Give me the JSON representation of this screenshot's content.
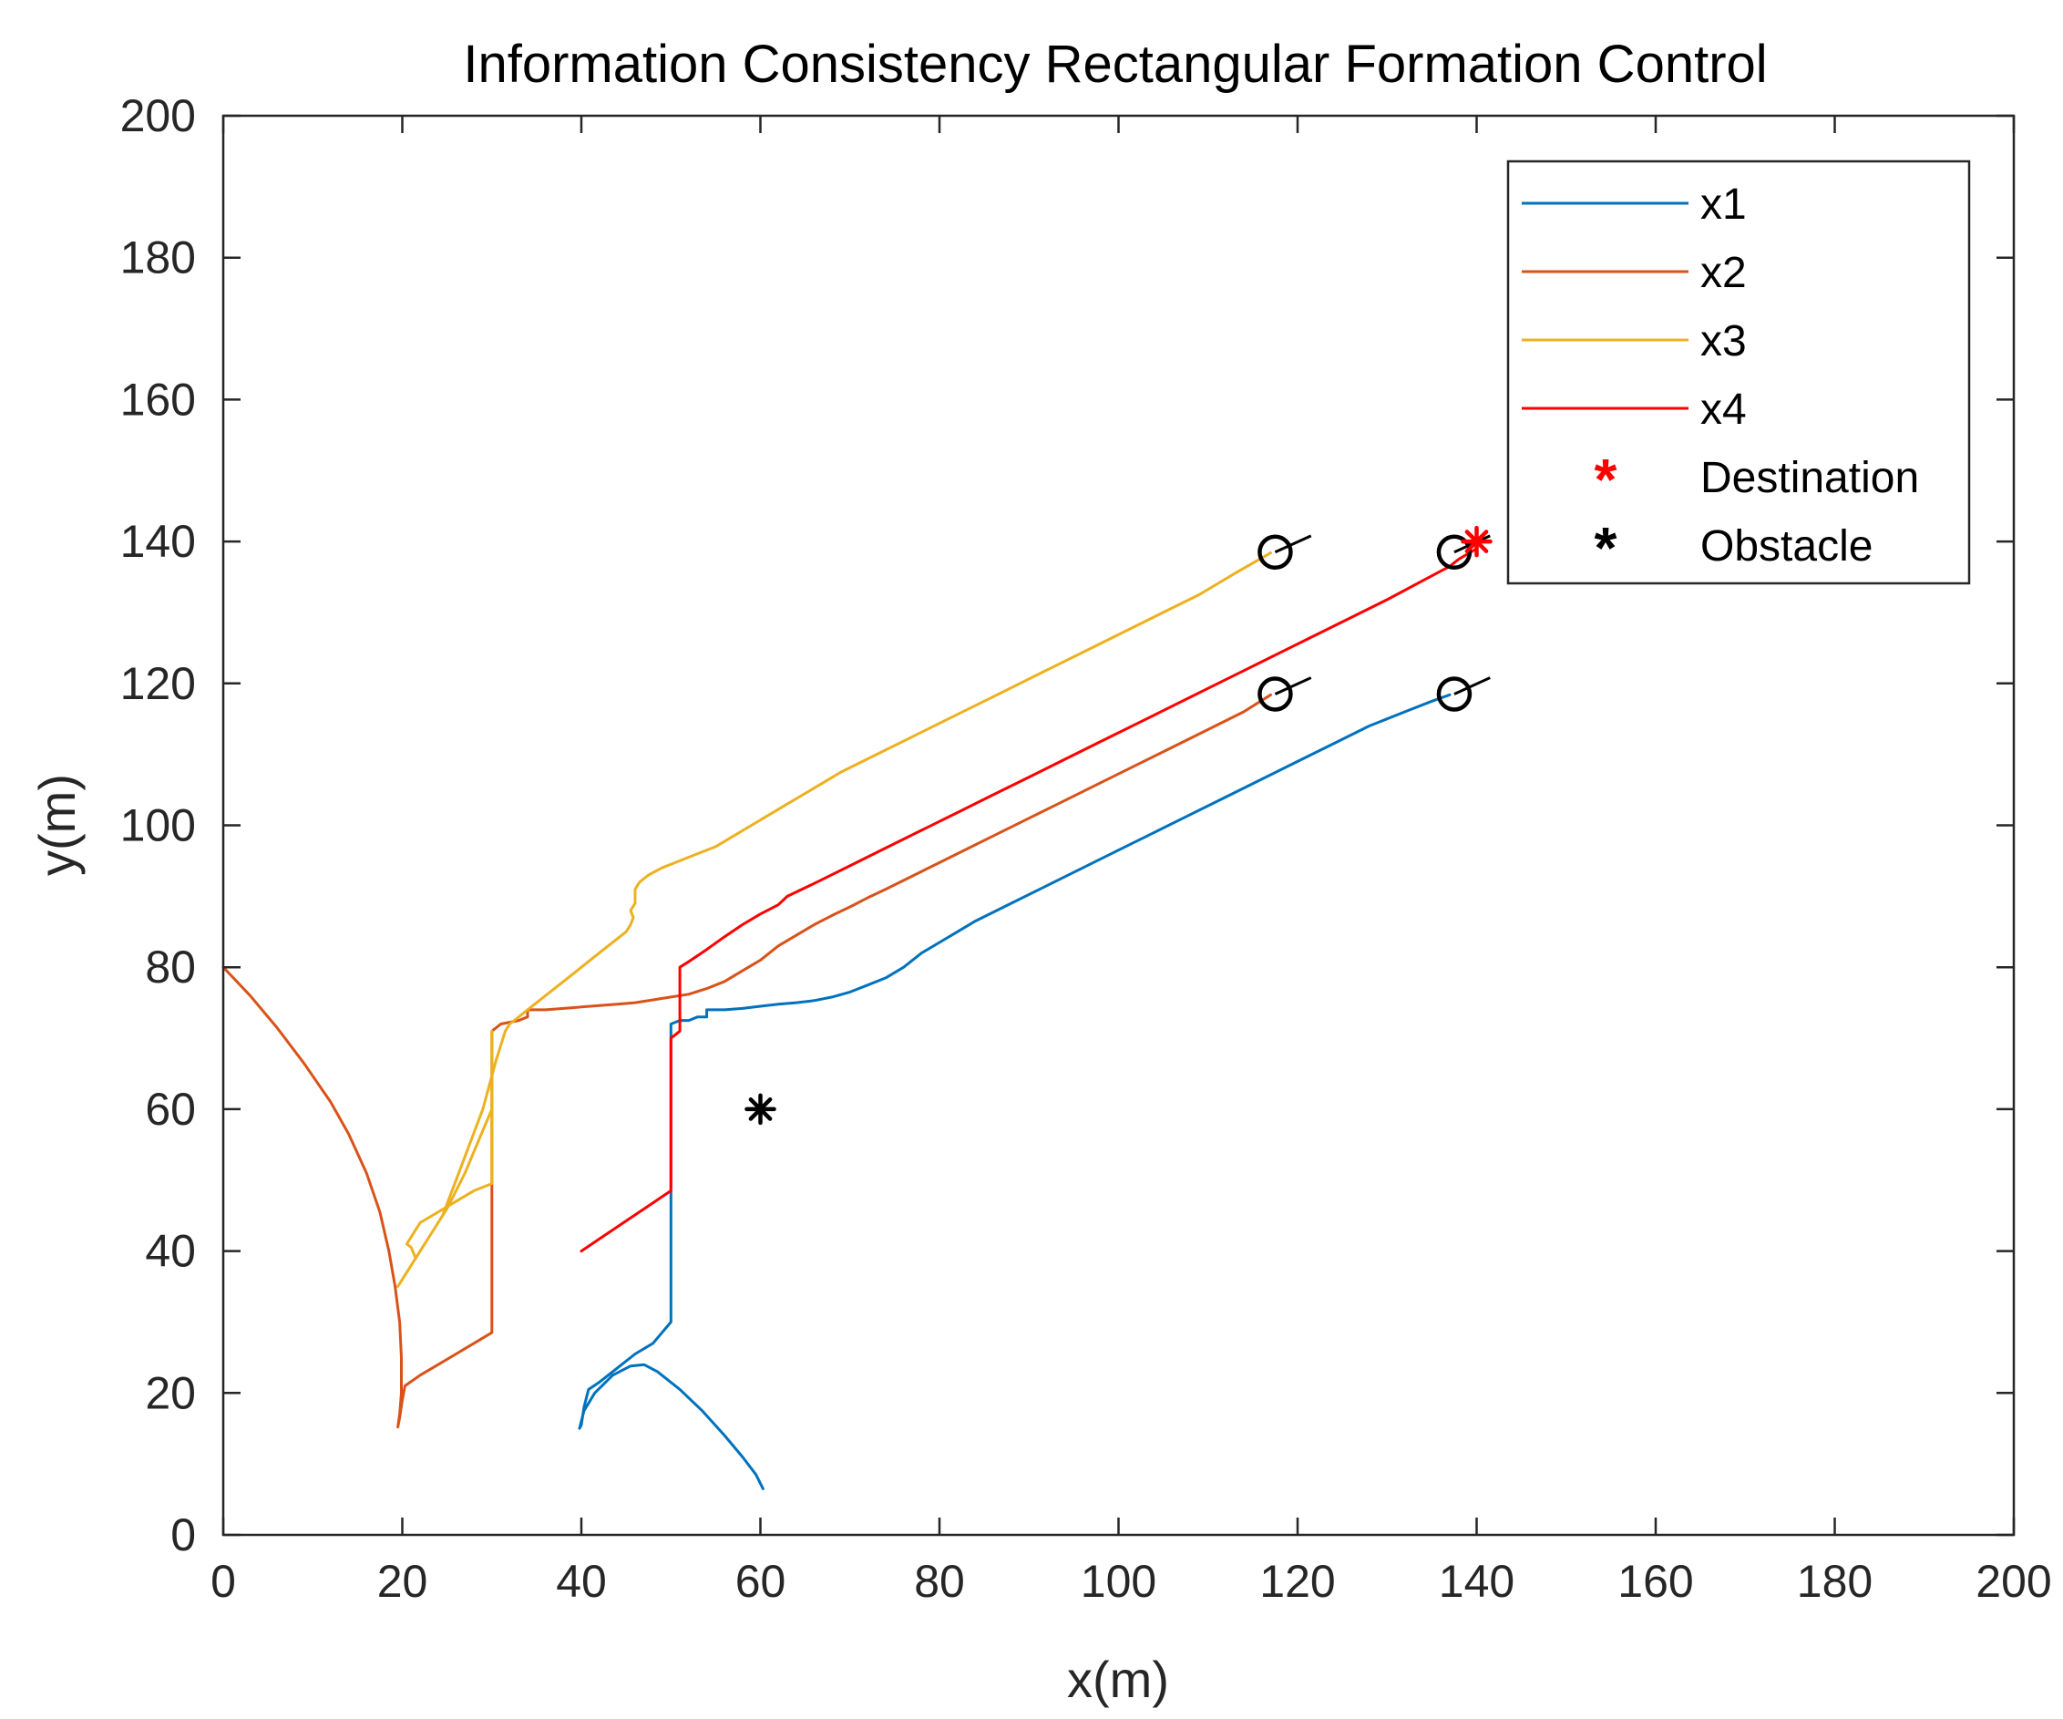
{
  "chart_data": {
    "type": "line",
    "title": "Information Consistency Rectangular Formation Control",
    "xlabel": "x(m)",
    "ylabel": "y(m)",
    "xlim": [
      0,
      200
    ],
    "ylim": [
      0,
      200
    ],
    "xticks": [
      0,
      20,
      40,
      60,
      80,
      100,
      120,
      140,
      160,
      180,
      200
    ],
    "yticks": [
      0,
      20,
      40,
      60,
      80,
      100,
      120,
      140,
      160,
      180,
      200
    ],
    "grid": false,
    "legend_position": "top-right",
    "series": [
      {
        "name": "x1",
        "color": "#0072BD",
        "points": [
          [
            60.3,
            6.5
          ],
          [
            59.5,
            8.5
          ],
          [
            58,
            11
          ],
          [
            56,
            14
          ],
          [
            53.5,
            17.5
          ],
          [
            51,
            20.5
          ],
          [
            48.5,
            23
          ],
          [
            47,
            24
          ],
          [
            45.5,
            23.8
          ],
          [
            43.5,
            22.5
          ],
          [
            41.5,
            20
          ],
          [
            40.3,
            17.5
          ],
          [
            39.8,
            15
          ],
          [
            40,
            15.5
          ],
          [
            40.3,
            18
          ],
          [
            40.8,
            20.5
          ],
          [
            42,
            21.5
          ],
          [
            44,
            23.5
          ],
          [
            46,
            25.5
          ],
          [
            48,
            27
          ],
          [
            50,
            30
          ],
          [
            50,
            50
          ],
          [
            50,
            72
          ],
          [
            51,
            72.5
          ],
          [
            52,
            72.5
          ],
          [
            53,
            73
          ],
          [
            54,
            73
          ],
          [
            54,
            74
          ],
          [
            56,
            74
          ],
          [
            58,
            74.2
          ],
          [
            60,
            74.5
          ],
          [
            62,
            74.8
          ],
          [
            64,
            75
          ],
          [
            66,
            75.3
          ],
          [
            68,
            75.8
          ],
          [
            70,
            76.5
          ],
          [
            72,
            77.5
          ],
          [
            74,
            78.5
          ],
          [
            76,
            80
          ],
          [
            78,
            82
          ],
          [
            80,
            83.5
          ],
          [
            82,
            85
          ],
          [
            84,
            86.5
          ],
          [
            88,
            89
          ],
          [
            92,
            91.5
          ],
          [
            96,
            94
          ],
          [
            100,
            96.5
          ],
          [
            104,
            99
          ],
          [
            108,
            101.5
          ],
          [
            112,
            104
          ],
          [
            116,
            106.5
          ],
          [
            120,
            109
          ],
          [
            124,
            111.5
          ],
          [
            128,
            114
          ],
          [
            132,
            116
          ],
          [
            135,
            117.5
          ],
          [
            137,
            118.4
          ]
        ]
      },
      {
        "name": "x2",
        "color": "#D95319",
        "points": [
          [
            0,
            80
          ],
          [
            3,
            76
          ],
          [
            6,
            71.5
          ],
          [
            9,
            66.5
          ],
          [
            12,
            61
          ],
          [
            14,
            56.5
          ],
          [
            16,
            51
          ],
          [
            17.5,
            45.5
          ],
          [
            18.5,
            40
          ],
          [
            19.2,
            35
          ],
          [
            19.7,
            30
          ],
          [
            19.9,
            25
          ],
          [
            19.9,
            20
          ],
          [
            19.7,
            17
          ],
          [
            19.5,
            15.2
          ],
          [
            19.7,
            16.5
          ],
          [
            20,
            19
          ],
          [
            20.3,
            21
          ],
          [
            22,
            22.5
          ],
          [
            24,
            24
          ],
          [
            26,
            25.5
          ],
          [
            28,
            27
          ],
          [
            30,
            28.5
          ],
          [
            30,
            30
          ],
          [
            30,
            50
          ],
          [
            30,
            71
          ],
          [
            31,
            72
          ],
          [
            33,
            72.5
          ],
          [
            34,
            73
          ],
          [
            34,
            74
          ],
          [
            36,
            74
          ],
          [
            38,
            74.2
          ],
          [
            40,
            74.4
          ],
          [
            42,
            74.6
          ],
          [
            44,
            74.8
          ],
          [
            46,
            75
          ],
          [
            48,
            75.4
          ],
          [
            50,
            75.8
          ],
          [
            52,
            76.2
          ],
          [
            54,
            77
          ],
          [
            56,
            78
          ],
          [
            58,
            79.5
          ],
          [
            60,
            81
          ],
          [
            62,
            83
          ],
          [
            64,
            84.5
          ],
          [
            66,
            86
          ],
          [
            68,
            87.3
          ],
          [
            70,
            88.5
          ],
          [
            72,
            89.8
          ],
          [
            74,
            91
          ],
          [
            78,
            93.5
          ],
          [
            82,
            96
          ],
          [
            86,
            98.5
          ],
          [
            90,
            101
          ],
          [
            94,
            103.5
          ],
          [
            98,
            106
          ],
          [
            102,
            108.5
          ],
          [
            106,
            111
          ],
          [
            110,
            113.5
          ],
          [
            114,
            116
          ],
          [
            117,
            118.4
          ]
        ]
      },
      {
        "name": "x3",
        "color": "#EDB120",
        "points": [
          [
            19.5,
            35
          ],
          [
            20,
            36
          ],
          [
            21,
            38
          ],
          [
            22,
            40
          ],
          [
            23,
            42
          ],
          [
            24,
            44
          ],
          [
            25,
            46
          ],
          [
            26,
            48.5
          ],
          [
            27,
            51
          ],
          [
            28,
            54
          ],
          [
            29,
            57
          ],
          [
            30,
            60
          ],
          [
            30,
            64
          ],
          [
            30,
            68
          ],
          [
            30,
            71
          ],
          [
            30,
            50
          ],
          [
            30,
            49.5
          ],
          [
            28,
            48.5
          ],
          [
            26,
            47
          ],
          [
            24,
            45.5
          ],
          [
            22,
            44
          ],
          [
            20.5,
            41
          ],
          [
            21,
            40.5
          ],
          [
            21.5,
            39
          ],
          [
            23,
            42
          ],
          [
            24.5,
            45
          ],
          [
            26,
            50
          ],
          [
            27.5,
            55
          ],
          [
            29,
            60
          ],
          [
            30.5,
            67
          ],
          [
            31.5,
            71
          ],
          [
            32,
            72
          ],
          [
            34,
            74
          ],
          [
            36,
            76
          ],
          [
            38,
            78
          ],
          [
            40,
            80
          ],
          [
            42,
            82
          ],
          [
            44,
            84
          ],
          [
            45,
            85
          ],
          [
            45.5,
            86
          ],
          [
            45.8,
            87
          ],
          [
            45.5,
            88
          ],
          [
            46,
            89
          ],
          [
            46,
            91
          ],
          [
            46.5,
            92
          ],
          [
            47.5,
            93
          ],
          [
            49,
            94
          ],
          [
            51,
            95
          ],
          [
            53,
            96
          ],
          [
            55,
            97
          ],
          [
            57,
            98.5
          ],
          [
            59,
            100
          ],
          [
            61,
            101.5
          ],
          [
            63,
            103
          ],
          [
            65,
            104.5
          ],
          [
            67,
            106
          ],
          [
            69,
            107.5
          ],
          [
            73,
            110
          ],
          [
            77,
            112.5
          ],
          [
            81,
            115
          ],
          [
            85,
            117.5
          ],
          [
            89,
            120
          ],
          [
            93,
            122.5
          ],
          [
            97,
            125
          ],
          [
            101,
            127.5
          ],
          [
            105,
            130
          ],
          [
            109,
            132.5
          ],
          [
            113,
            135.5
          ],
          [
            117,
            138.4
          ]
        ]
      },
      {
        "name": "x4",
        "color": "#FF0000",
        "points": [
          [
            40,
            40
          ],
          [
            42,
            41.7
          ],
          [
            44,
            43.4
          ],
          [
            46,
            45.1
          ],
          [
            48,
            46.8
          ],
          [
            50,
            48.5
          ],
          [
            50,
            50
          ],
          [
            50,
            60
          ],
          [
            50,
            70
          ],
          [
            50.5,
            70.5
          ],
          [
            51,
            71
          ],
          [
            51,
            75
          ],
          [
            51,
            80
          ],
          [
            52,
            80.8
          ],
          [
            54,
            82.5
          ],
          [
            56,
            84.3
          ],
          [
            58,
            86
          ],
          [
            60,
            87.5
          ],
          [
            62,
            88.8
          ],
          [
            63,
            90
          ],
          [
            66,
            91.8
          ],
          [
            70,
            94.3
          ],
          [
            74,
            96.8
          ],
          [
            78,
            99.3
          ],
          [
            82,
            101.8
          ],
          [
            86,
            104.3
          ],
          [
            90,
            106.8
          ],
          [
            94,
            109.3
          ],
          [
            98,
            111.8
          ],
          [
            102,
            114.3
          ],
          [
            106,
            116.8
          ],
          [
            110,
            119.3
          ],
          [
            114,
            121.8
          ],
          [
            118,
            124.3
          ],
          [
            122,
            126.8
          ],
          [
            126,
            129.3
          ],
          [
            130,
            131.8
          ],
          [
            134,
            134.5
          ],
          [
            137,
            136.5
          ],
          [
            138,
            137.5
          ],
          [
            140,
            139
          ]
        ]
      }
    ],
    "end_markers": [
      {
        "x": 117.5,
        "y": 138.5
      },
      {
        "x": 137.5,
        "y": 138.5
      },
      {
        "x": 117.5,
        "y": 118.5
      },
      {
        "x": 137.5,
        "y": 118.5
      }
    ],
    "heading_indicators": [
      {
        "from": [
          117.5,
          138.5
        ],
        "to": [
          121.5,
          140.8
        ]
      },
      {
        "from": [
          137.5,
          138.5
        ],
        "to": [
          141.5,
          140.8
        ]
      },
      {
        "from": [
          117.5,
          118.5
        ],
        "to": [
          121.5,
          120.8
        ]
      },
      {
        "from": [
          137.5,
          118.5
        ],
        "to": [
          141.5,
          120.8
        ]
      }
    ],
    "destination": {
      "name": "Destination",
      "x": 140,
      "y": 140,
      "color": "#FF0000"
    },
    "obstacle": {
      "name": "Obstacle",
      "x": 60,
      "y": 60,
      "color": "#000000"
    }
  }
}
